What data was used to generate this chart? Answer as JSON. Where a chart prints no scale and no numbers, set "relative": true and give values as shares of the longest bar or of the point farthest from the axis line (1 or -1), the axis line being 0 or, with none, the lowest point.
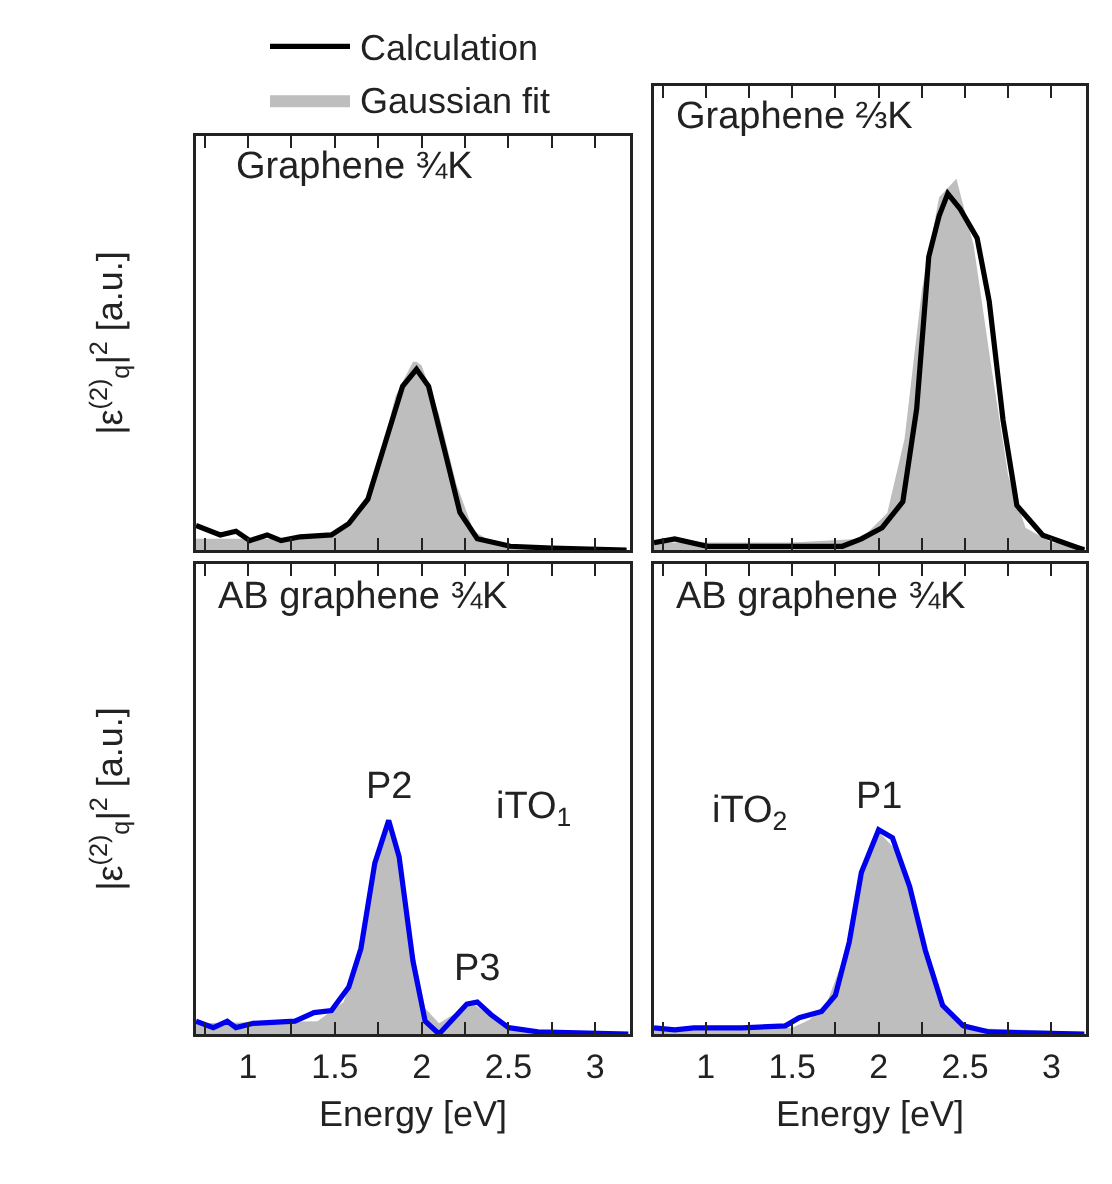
{
  "chart_data": [
    {
      "type": "line",
      "relative": true,
      "title": "Graphene ¾K",
      "ylabel": "|ε$^{(2)}$$_{q}$|$^{2}$ [a.u.]",
      "legend": "top",
      "tick_labels": false,
      "xlim": [
        0.7,
        3.2
      ],
      "xticks": [
        {
          "value": 0.75,
          "label": null
        },
        {
          "value": 1,
          "label": null
        },
        {
          "value": 1.25,
          "label": null
        },
        {
          "value": 1.5,
          "label": null
        },
        {
          "value": 1.75,
          "label": null
        },
        {
          "value": 2,
          "label": null
        },
        {
          "value": 2.25,
          "label": null
        },
        {
          "value": 2.5,
          "label": null
        },
        {
          "value": 2.75,
          "label": null
        },
        {
          "value": 3,
          "label": null
        }
      ],
      "series": [
        {
          "name": "Gaussian fit",
          "type": "area",
          "color": "#bebebe",
          "x": [
            0.7,
            1.0,
            1.3,
            1.5,
            1.65,
            1.75,
            1.85,
            1.95,
            1.97,
            2.0,
            2.1,
            2.2,
            2.3,
            2.45,
            3.18
          ],
          "values": [
            0.06,
            0.06,
            0.06,
            0.08,
            0.2,
            0.45,
            0.82,
            1,
            1,
            0.98,
            0.72,
            0.35,
            0.1,
            0.02,
            0.01
          ]
        },
        {
          "name": "Calculation",
          "type": "line",
          "color": "#000000",
          "x": [
            0.7,
            0.84,
            0.93,
            1.01,
            1.11,
            1.19,
            1.3,
            1.48,
            1.58,
            1.69,
            1.79,
            1.89,
            1.97,
            2.04,
            2.14,
            2.22,
            2.32,
            2.51,
            2.75,
            3.18
          ],
          "values": [
            0.13,
            0.08,
            0.1,
            0.05,
            0.08,
            0.05,
            0.07,
            0.08,
            0.14,
            0.27,
            0.57,
            0.87,
            0.96,
            0.87,
            0.5,
            0.2,
            0.06,
            0.02,
            0.01,
            0
          ]
        }
      ]
    },
    {
      "type": "line",
      "relative": true,
      "title": "Graphene ⅔K",
      "tick_labels": false,
      "xlim": [
        0.7,
        3.2
      ],
      "xticks": [
        {
          "value": 0.75,
          "label": null
        },
        {
          "value": 1,
          "label": null
        },
        {
          "value": 1.25,
          "label": null
        },
        {
          "value": 1.5,
          "label": null
        },
        {
          "value": 1.75,
          "label": null
        },
        {
          "value": 2,
          "label": null
        },
        {
          "value": 2.25,
          "label": null
        },
        {
          "value": 2.5,
          "label": null
        },
        {
          "value": 2.75,
          "label": null
        },
        {
          "value": 3,
          "label": null
        }
      ],
      "series": [
        {
          "type": "area",
          "color": "#bebebe",
          "x": [
            0.7,
            1.5,
            1.9,
            2.05,
            2.15,
            2.25,
            2.35,
            2.45,
            2.55,
            2.65,
            2.75,
            2.85,
            3.0,
            3.19
          ],
          "values": [
            0.02,
            0.02,
            0.03,
            0.1,
            0.3,
            0.7,
            0.95,
            1,
            0.82,
            0.5,
            0.2,
            0.06,
            0.02,
            0.01
          ]
        },
        {
          "type": "line",
          "color": "#000000",
          "x": [
            0.7,
            0.82,
            1.01,
            1.4,
            1.79,
            1.9,
            2.02,
            2.14,
            2.22,
            2.29,
            2.35,
            2.4,
            2.47,
            2.57,
            2.64,
            2.72,
            2.8,
            2.95,
            3.19
          ],
          "values": [
            0.02,
            0.03,
            0.01,
            0.01,
            0.01,
            0.03,
            0.06,
            0.13,
            0.38,
            0.79,
            0.9,
            0.96,
            0.92,
            0.84,
            0.67,
            0.35,
            0.12,
            0.04,
            0
          ]
        }
      ]
    },
    {
      "type": "line",
      "relative": true,
      "title": "AB graphene ¾K",
      "ylabel": "|ε$^{(2)}$$_{q}$|$^{2}$ [a.u.]",
      "xlabel": "Energy [eV]",
      "tick_labels": "x",
      "xlim": [
        0.7,
        3.2
      ],
      "xticks": [
        {
          "value": 0.75,
          "label": null
        },
        1,
        {
          "value": 1.25,
          "label": null
        },
        1.5,
        {
          "value": 1.75,
          "label": null
        },
        2,
        {
          "value": 2.25,
          "label": null
        },
        2.5,
        {
          "value": 2.75,
          "label": null
        },
        3
      ],
      "annotations": [
        {
          "text": "P2",
          "x": 1.81,
          "y": 1
        },
        "iTO$_{1}$",
        {
          "text": "P3",
          "x": 2.32,
          "y": 0.15
        }
      ],
      "series": [
        {
          "type": "area",
          "color": "#bebebe",
          "x": [
            0.7,
            1.4,
            1.55,
            1.65,
            1.73,
            1.81,
            1.88,
            1.95,
            2.02,
            2.1,
            2.2,
            2.3,
            2.4,
            2.5,
            3.19
          ],
          "values": [
            0.05,
            0.06,
            0.15,
            0.38,
            0.8,
            0.98,
            0.8,
            0.4,
            0.12,
            0.05,
            0.1,
            0.14,
            0.08,
            0.02,
            0.01
          ]
        },
        {
          "type": "line",
          "color": "#0000ee",
          "x": [
            0.7,
            0.8,
            0.88,
            0.93,
            1.03,
            1.27,
            1.38,
            1.48,
            1.58,
            1.65,
            1.73,
            1.81,
            1.87,
            1.95,
            2.02,
            2.1,
            2.18,
            2.26,
            2.32,
            2.4,
            2.5,
            2.67,
            3.19
          ],
          "values": [
            0.06,
            0.03,
            0.06,
            0.03,
            0.05,
            0.06,
            0.1,
            0.11,
            0.22,
            0.4,
            0.8,
            1,
            0.83,
            0.34,
            0.06,
            0,
            0.07,
            0.14,
            0.15,
            0.09,
            0.03,
            0.01,
            0
          ]
        }
      ]
    },
    {
      "type": "line",
      "relative": true,
      "title": "AB graphene ¾K",
      "xlabel": "Energy [eV]",
      "tick_labels": "x",
      "xlim": [
        0.7,
        3.2
      ],
      "xticks": [
        {
          "value": 0.75,
          "label": null
        },
        1,
        {
          "value": 1.25,
          "label": null
        },
        1.5,
        {
          "value": 1.75,
          "label": null
        },
        2,
        {
          "value": 2.25,
          "label": null
        },
        2.5,
        {
          "value": 2.75,
          "label": null
        },
        3
      ],
      "annotations": [
        "iTO$_{2}$",
        {
          "text": "P1",
          "x": 2.0,
          "y": 1
        }
      ],
      "series": [
        {
          "type": "area",
          "color": "#bebebe",
          "x": [
            0.7,
            1.5,
            1.6,
            1.7,
            1.8,
            1.9,
            2.0,
            2.1,
            2.2,
            2.3,
            2.4,
            2.5,
            3.19
          ],
          "values": [
            0.02,
            0.03,
            0.07,
            0.15,
            0.38,
            0.78,
            0.99,
            0.9,
            0.66,
            0.34,
            0.11,
            0.03,
            0.01
          ]
        },
        {
          "type": "line",
          "color": "#0000ee",
          "x": [
            0.7,
            0.82,
            0.93,
            1.21,
            1.46,
            1.54,
            1.67,
            1.75,
            1.83,
            1.9,
            2.0,
            2.08,
            2.18,
            2.27,
            2.37,
            2.49,
            2.64,
            3.19
          ],
          "values": [
            0.03,
            0.02,
            0.03,
            0.03,
            0.04,
            0.08,
            0.11,
            0.19,
            0.45,
            0.79,
            1,
            0.96,
            0.72,
            0.41,
            0.14,
            0.04,
            0.01,
            0
          ]
        }
      ]
    }
  ]
}
